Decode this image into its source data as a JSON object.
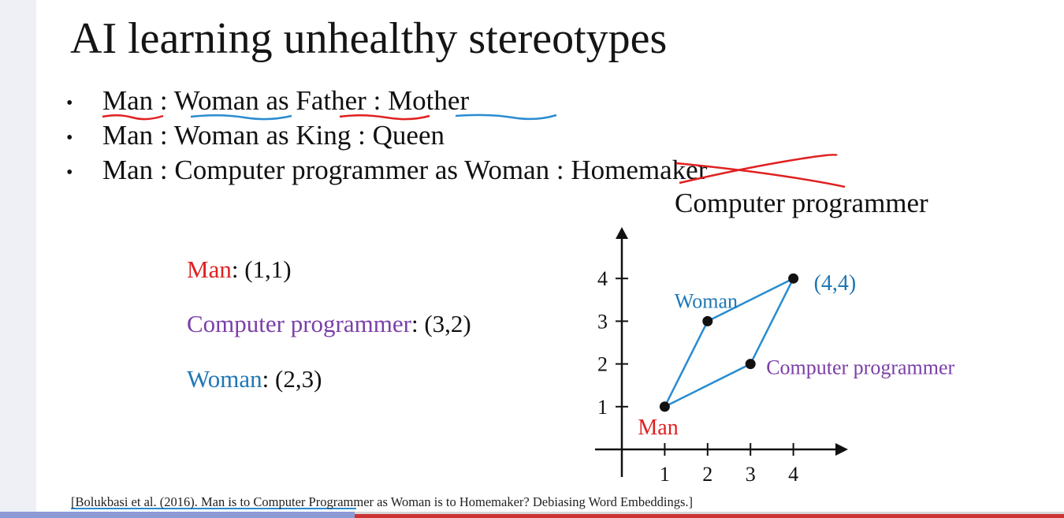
{
  "slide": {
    "title": "AI learning unhealthy stereotypes",
    "bullet_symbol": "•",
    "bullets": [
      {
        "a": "Man",
        "sep1": " : ",
        "b": "Woman",
        "mid": " as ",
        "c": "Father",
        "sep2": " : ",
        "d": "Mother"
      },
      {
        "a": "Man",
        "sep1": " : ",
        "b": "Woman",
        "mid": " as ",
        "c": "King",
        "sep2": " : ",
        "d": "Queen"
      },
      {
        "a": "Man",
        "sep1": " : ",
        "b": "Computer programmer",
        "mid": " as ",
        "c": "Woman",
        "sep2": " : ",
        "d": "Homemaker"
      }
    ],
    "correction": "Computer programmer",
    "coords": [
      {
        "name": "Man",
        "value": ": (1,1)",
        "color": "#e02020"
      },
      {
        "name": "Computer programmer",
        "value": ": (3,2)",
        "color": "#7b3fa8"
      },
      {
        "name": "Woman",
        "value": ": (2,3)",
        "color": "#1f77b4"
      }
    ],
    "citation": "[Bolukbasi et al. (2016). Man is to Computer Programmer as Woman is to Homemaker? Debiasing Word Embeddings.]",
    "colors": {
      "red": "#e02020",
      "blue": "#1f77b4",
      "purple": "#7b3fa8",
      "pen_blue": "#2a8bd0"
    }
  },
  "chart_data": {
    "type": "scatter",
    "x_ticks": [
      "1",
      "2",
      "3",
      "4"
    ],
    "y_ticks": [
      "1",
      "2",
      "3",
      "4"
    ],
    "xlim": [
      0,
      4.5
    ],
    "ylim": [
      0,
      4.5
    ],
    "grid": false,
    "points": [
      {
        "label": "Man",
        "x": 1,
        "y": 1,
        "color": "#e02020"
      },
      {
        "label": "Woman",
        "x": 2,
        "y": 3,
        "color": "#1f77b4"
      },
      {
        "label": "Computer programmer",
        "x": 3,
        "y": 2,
        "color": "#7b3fa8"
      },
      {
        "label": "(4,4)",
        "x": 4,
        "y": 4,
        "color": "#1f77b4"
      }
    ],
    "parallelogram": [
      [
        1,
        1
      ],
      [
        2,
        3
      ],
      [
        4,
        4
      ],
      [
        3,
        2
      ]
    ]
  }
}
